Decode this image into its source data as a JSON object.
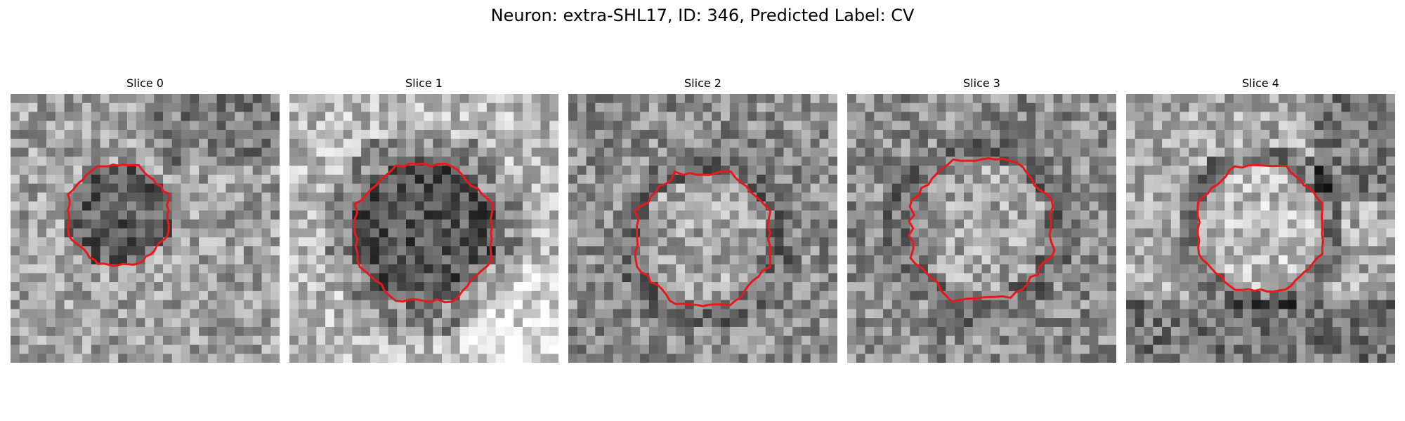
{
  "figure": {
    "title": "Neuron: extra-SHL17, ID: 346, Predicted Label: CV"
  },
  "panels": [
    {
      "title": "Slice 0",
      "seed": 11,
      "profile": "dark-blob",
      "contour": "octagon"
    },
    {
      "title": "Slice 1",
      "seed": 23,
      "profile": "dark-blob-smooth",
      "contour": "large-octagon"
    },
    {
      "title": "Slice 2",
      "seed": 37,
      "profile": "light-center",
      "contour": "octagon"
    },
    {
      "title": "Slice 3",
      "seed": 41,
      "profile": "light-center",
      "contour": "jagged-octagon"
    },
    {
      "title": "Slice 4",
      "seed": 53,
      "profile": "light-center-dark-bottom",
      "contour": "octagon"
    }
  ],
  "image_style": {
    "colormap": "gray",
    "grid_size": 30,
    "contour_color": "#e8191c"
  }
}
